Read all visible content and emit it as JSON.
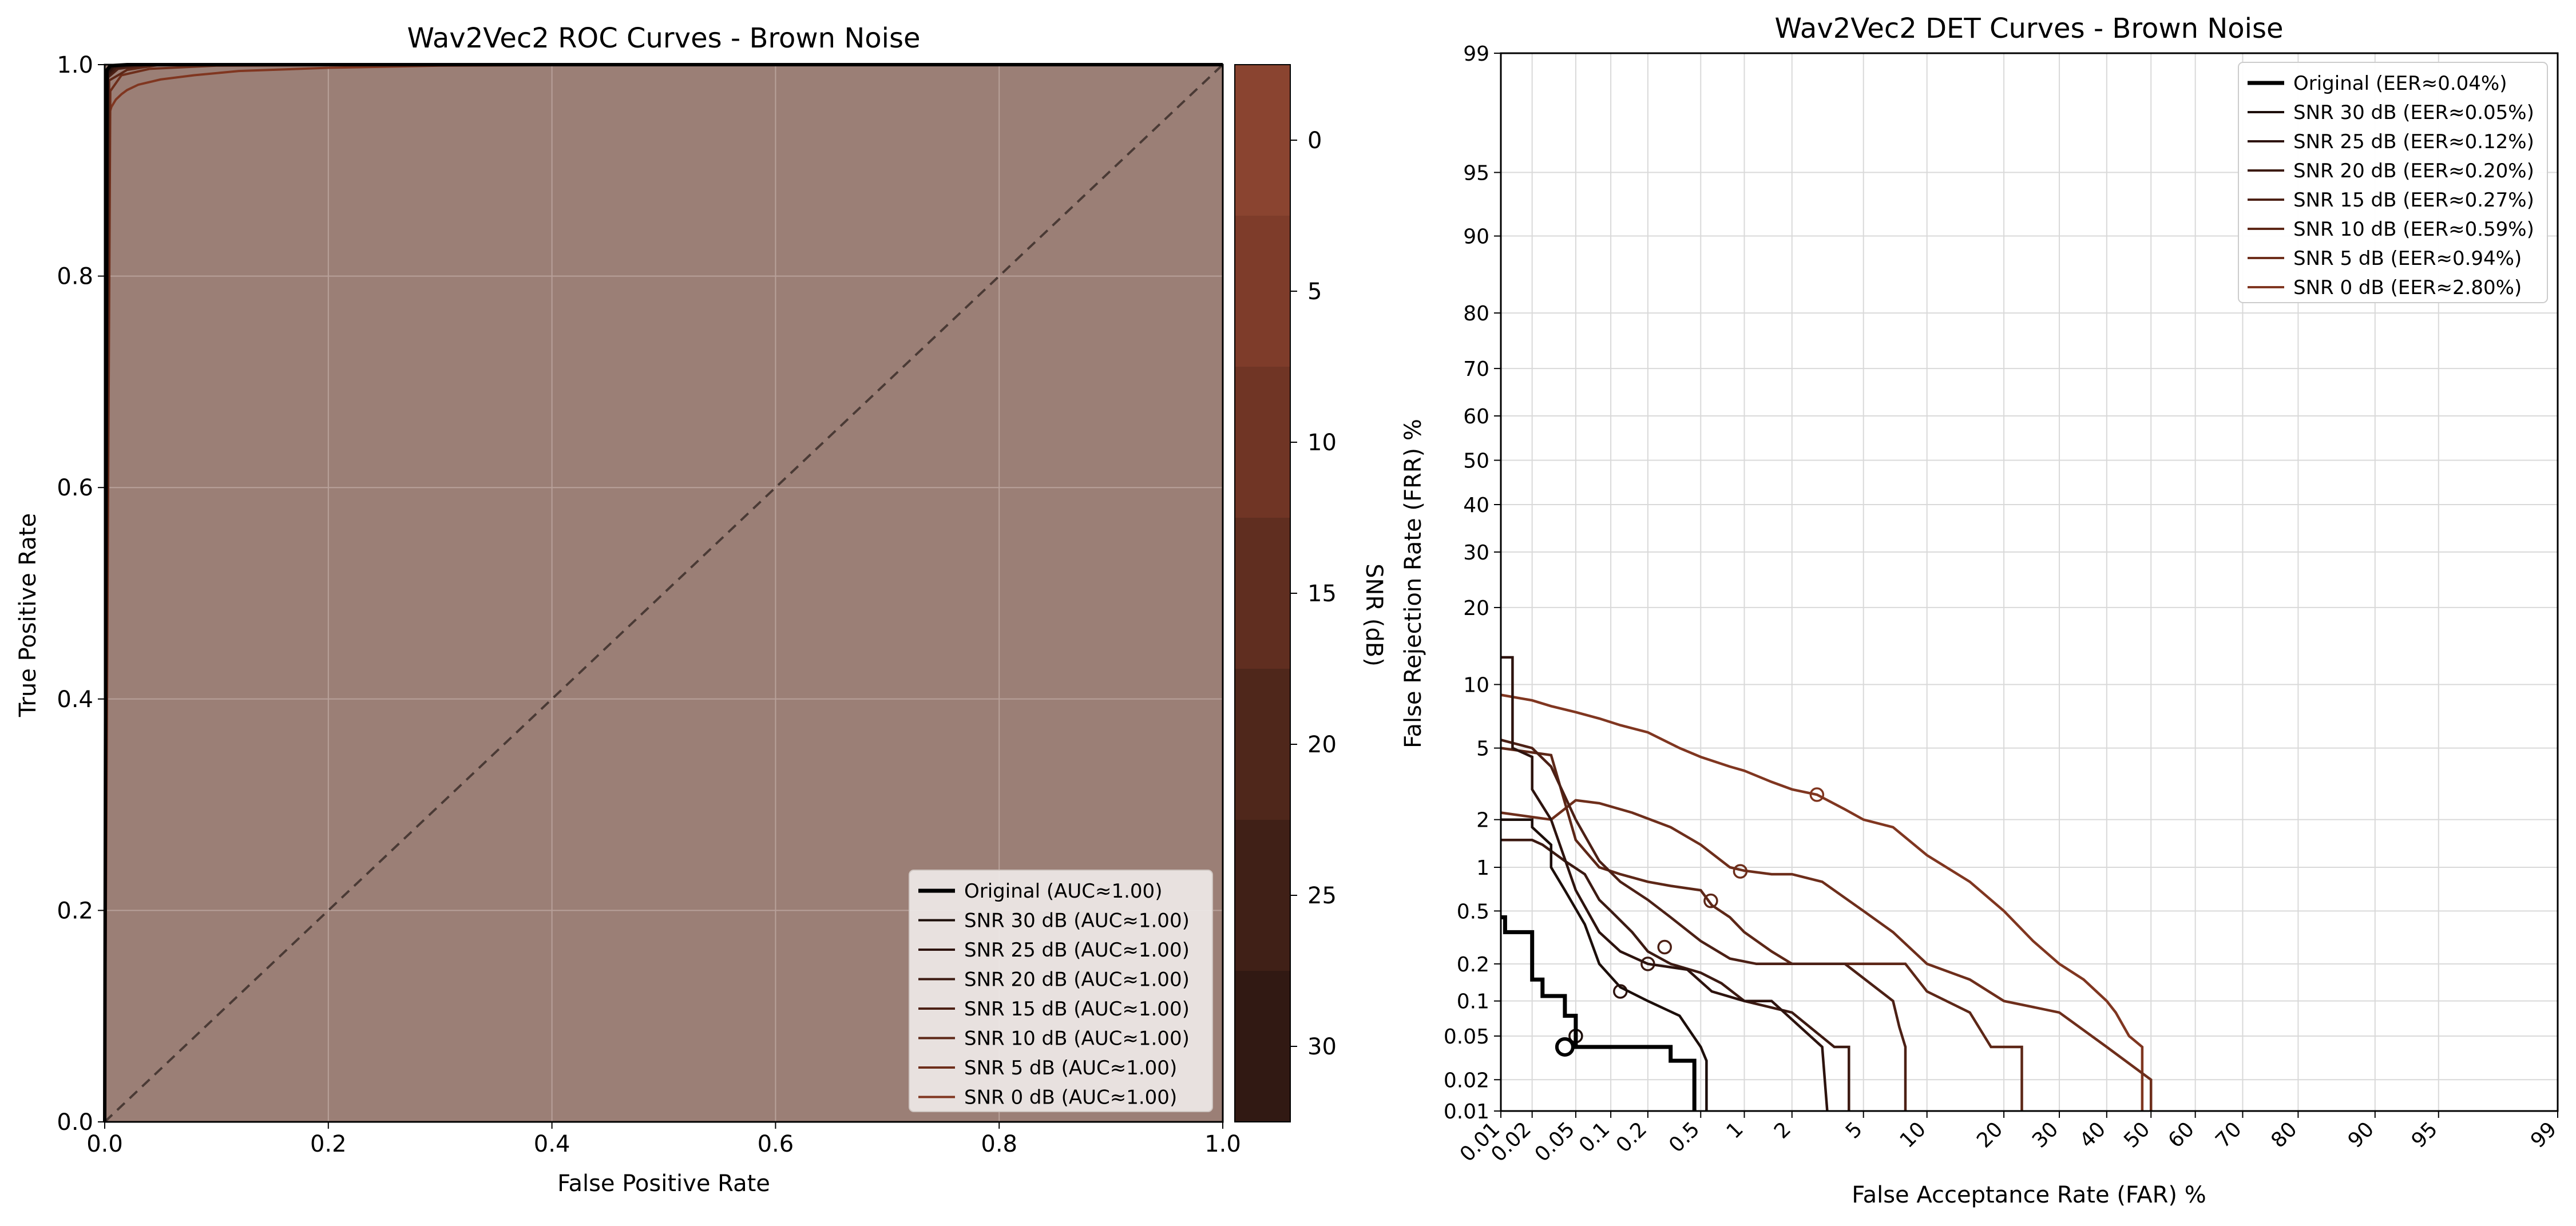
{
  "chart_data": [
    {
      "type": "line",
      "title": "Wav2Vec2 ROC Curves - Brown Noise",
      "xlabel": "False Positive Rate",
      "ylabel": "True Positive Rate",
      "xlim": [
        0,
        1
      ],
      "ylim": [
        0,
        1
      ],
      "xticks": [
        "0.0",
        "0.2",
        "0.4",
        "0.6",
        "0.8",
        "1.0"
      ],
      "yticks": [
        "0.0",
        "0.2",
        "0.4",
        "0.6",
        "0.8",
        "1.0"
      ],
      "grid": true,
      "legend_position": "lower-right",
      "colorbar": {
        "label": "SNR (dB)",
        "ticks": [
          "0",
          "5",
          "10",
          "15",
          "20",
          "25",
          "30"
        ],
        "colors": [
          "#8a4430",
          "#7e3c2a",
          "#703525",
          "#602e20",
          "#4f271b",
          "#402017",
          "#311913"
        ]
      },
      "series": [
        {
          "name": "Original (AUC≈1.00)",
          "color": "#000000",
          "x": [
            0,
            0.002,
            0.005,
            0.02,
            1
          ],
          "y": [
            0,
            0.995,
            0.999,
            1,
            1
          ]
        },
        {
          "name": "SNR 30 dB (AUC≈1.00)",
          "color": "#1c0e0a",
          "x": [
            0,
            0.002,
            0.006,
            0.02,
            1
          ],
          "y": [
            0,
            0.993,
            0.998,
            1,
            1
          ]
        },
        {
          "name": "SNR 25 dB (AUC≈1.00)",
          "color": "#2d130e",
          "x": [
            0,
            0.003,
            0.008,
            0.03,
            1
          ],
          "y": [
            0,
            0.992,
            0.998,
            1,
            1
          ]
        },
        {
          "name": "SNR 20 dB (AUC≈1.00)",
          "color": "#3c1a12",
          "x": [
            0,
            0.003,
            0.01,
            0.03,
            1
          ],
          "y": [
            0,
            0.99,
            0.997,
            1,
            1
          ]
        },
        {
          "name": "SNR 15 dB (AUC≈1.00)",
          "color": "#4c2015",
          "x": [
            0,
            0.003,
            0.012,
            0.04,
            1
          ],
          "y": [
            0,
            0.988,
            0.996,
            1,
            1
          ]
        },
        {
          "name": "SNR 10 dB (AUC≈1.00)",
          "color": "#5d2717",
          "x": [
            0,
            0.004,
            0.02,
            0.05,
            1
          ],
          "y": [
            0,
            0.985,
            0.995,
            1,
            1
          ]
        },
        {
          "name": "SNR 5 dB (AUC≈1.00)",
          "color": "#6e2e1b",
          "x": [
            0,
            0.005,
            0.015,
            0.04,
            0.1,
            0.3,
            1
          ],
          "y": [
            0,
            0.975,
            0.99,
            0.996,
            0.999,
            1,
            1
          ]
        },
        {
          "name": "SNR 0 dB (AUC≈1.00)",
          "color": "#803620",
          "x": [
            0,
            0.001,
            0.003,
            0.006,
            0.01,
            0.015,
            0.02,
            0.03,
            0.05,
            0.08,
            0.12,
            0.2,
            0.3,
            0.5,
            1
          ],
          "y": [
            0,
            0.93,
            0.95,
            0.96,
            0.967,
            0.972,
            0.976,
            0.981,
            0.986,
            0.99,
            0.994,
            0.997,
            0.999,
            1,
            1
          ]
        }
      ]
    },
    {
      "type": "line",
      "title": "Wav2Vec2 DET Curves - Brown Noise",
      "xlabel": "False Acceptance Rate (FAR) %",
      "ylabel": "False Rejection Rate (FRR) %",
      "scale": "normal-deviate",
      "xlim": [
        0.01,
        99
      ],
      "ylim": [
        0.01,
        99
      ],
      "xticks": [
        "0.01",
        "0.02",
        "0.05",
        "0.1",
        "0.2",
        "0.5",
        "1",
        "2",
        "5",
        "10",
        "20",
        "30",
        "40",
        "50",
        "60",
        "70",
        "80",
        "90",
        "95",
        "99"
      ],
      "yticks": [
        "0.01",
        "0.02",
        "0.05",
        "0.1",
        "0.2",
        "0.5",
        "1",
        "2",
        "5",
        "10",
        "20",
        "30",
        "40",
        "50",
        "60",
        "70",
        "80",
        "90",
        "95",
        "99"
      ],
      "grid": true,
      "legend_position": "upper-right",
      "series": [
        {
          "name": "Original (EER≈0.04%)",
          "color": "#000000",
          "eer": 0.04,
          "x": [
            0.01,
            0.011,
            0.011,
            0.02,
            0.02,
            0.025,
            0.025,
            0.04,
            0.04,
            0.05,
            0.05,
            0.3,
            0.3,
            0.45,
            0.45
          ],
          "y": [
            0.45,
            0.45,
            0.35,
            0.35,
            0.15,
            0.15,
            0.11,
            0.11,
            0.075,
            0.075,
            0.04,
            0.04,
            0.03,
            0.03,
            0.01
          ]
        },
        {
          "name": "SNR 30 dB (EER≈0.05%)",
          "color": "#1c0e0a",
          "eer": 0.05,
          "x": [
            0.01,
            0.02,
            0.02,
            0.03,
            0.03,
            0.04,
            0.06,
            0.08,
            0.12,
            0.2,
            0.35,
            0.5,
            0.5,
            0.55,
            0.55
          ],
          "y": [
            2.0,
            2.0,
            1.8,
            1.4,
            1.0,
            0.7,
            0.4,
            0.2,
            0.13,
            0.1,
            0.075,
            0.04,
            0.04,
            0.03,
            0.01
          ]
        },
        {
          "name": "SNR 25 dB (EER≈0.12%)",
          "color": "#2d130e",
          "eer": 0.12,
          "x": [
            0.01,
            0.013,
            0.013,
            0.02,
            0.02,
            0.03,
            0.05,
            0.08,
            0.12,
            0.2,
            0.4,
            0.6,
            1.0,
            1.5,
            3.0,
            3.0,
            3.2
          ],
          "y": [
            13.0,
            13.0,
            5.0,
            4.5,
            3.0,
            2.0,
            0.7,
            0.35,
            0.25,
            0.2,
            0.18,
            0.12,
            0.1,
            0.1,
            0.04,
            0.04,
            0.01
          ]
        },
        {
          "name": "SNR 20 dB (EER≈0.20%)",
          "color": "#3c1a12",
          "eer": 0.2,
          "x": [
            0.01,
            0.02,
            0.025,
            0.04,
            0.06,
            0.08,
            0.1,
            0.15,
            0.2,
            0.3,
            0.5,
            0.7,
            1.0,
            2.0,
            3.5,
            3.5,
            4.2,
            4.2
          ],
          "y": [
            1.5,
            1.5,
            1.4,
            1.1,
            0.9,
            0.6,
            0.5,
            0.35,
            0.25,
            0.2,
            0.17,
            0.14,
            0.1,
            0.08,
            0.04,
            0.04,
            0.04,
            0.01
          ]
        },
        {
          "name": "SNR 15 dB (EER≈0.27%)",
          "color": "#4c2015",
          "eer": 0.27,
          "x": [
            0.01,
            0.02,
            0.03,
            0.05,
            0.08,
            0.12,
            0.2,
            0.3,
            0.5,
            0.8,
            1.2,
            2.0,
            4.0,
            7.0,
            7.5,
            8.0,
            8.0
          ],
          "y": [
            5.5,
            5.0,
            4.0,
            2.0,
            1.1,
            0.8,
            0.6,
            0.45,
            0.3,
            0.22,
            0.2,
            0.2,
            0.2,
            0.1,
            0.06,
            0.04,
            0.01
          ]
        },
        {
          "name": "SNR 10 dB (EER≈0.59%)",
          "color": "#5d2717",
          "eer": 0.59,
          "x": [
            0.01,
            0.03,
            0.05,
            0.08,
            0.12,
            0.2,
            0.3,
            0.5,
            0.6,
            0.8,
            1.0,
            1.5,
            2.0,
            3.0,
            5.0,
            8.0,
            10.0,
            15.0,
            18.0,
            18.0,
            23.0,
            23.0
          ],
          "y": [
            5.0,
            4.6,
            1.5,
            1.0,
            0.9,
            0.8,
            0.75,
            0.7,
            0.55,
            0.45,
            0.35,
            0.25,
            0.2,
            0.2,
            0.2,
            0.2,
            0.12,
            0.08,
            0.04,
            0.04,
            0.04,
            0.01
          ]
        },
        {
          "name": "SNR 5 dB (EER≈0.94%)",
          "color": "#6e2e1b",
          "eer": 0.94,
          "x": [
            0.01,
            0.03,
            0.05,
            0.08,
            0.15,
            0.3,
            0.5,
            0.8,
            1.0,
            1.5,
            2.0,
            3.0,
            5.0,
            7.0,
            10.0,
            15.0,
            20.0,
            30.0,
            40.0,
            50.0,
            50.0
          ],
          "y": [
            2.2,
            2.0,
            2.6,
            2.5,
            2.2,
            1.8,
            1.4,
            1.0,
            0.95,
            0.9,
            0.9,
            0.8,
            0.5,
            0.35,
            0.2,
            0.15,
            0.1,
            0.08,
            0.04,
            0.02,
            0.01
          ]
        },
        {
          "name": "SNR 0 dB (EER≈2.80%)",
          "color": "#803620",
          "eer": 2.8,
          "x": [
            0.01,
            0.02,
            0.03,
            0.05,
            0.08,
            0.12,
            0.2,
            0.35,
            0.5,
            0.8,
            1.0,
            1.5,
            2.0,
            2.8,
            4.0,
            5.0,
            7.0,
            10.0,
            15.0,
            20.0,
            25.0,
            30.0,
            35.0,
            40.0,
            42.0,
            45.0,
            48.0,
            48.0
          ],
          "y": [
            9.0,
            8.5,
            8.0,
            7.5,
            7.0,
            6.5,
            6.0,
            5.0,
            4.5,
            4.0,
            3.8,
            3.3,
            3.0,
            2.8,
            2.3,
            2.0,
            1.8,
            1.2,
            0.8,
            0.5,
            0.3,
            0.2,
            0.15,
            0.1,
            0.08,
            0.05,
            0.04,
            0.01
          ]
        }
      ]
    }
  ]
}
